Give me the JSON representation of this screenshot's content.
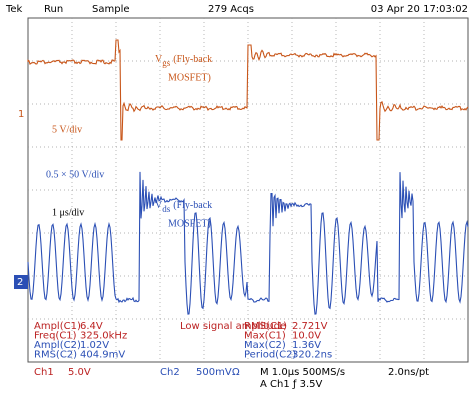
{
  "header": {
    "brand": "Tek",
    "state": "Run",
    "mode": "Sample",
    "acquisitions": "279 Acqs",
    "timestamp": "03 Apr 20 17:03:02"
  },
  "markers": {
    "ch1": "1",
    "ch2": "2"
  },
  "annotations": {
    "vgs": {
      "symbol": "V",
      "subscript": "gs",
      "line1": "(Fly-back",
      "line2": "MOSFET)"
    },
    "ch1_scale": "5 V/div",
    "ch2_scale": "0.5 × 50 V/div",
    "time_scale": "1 μs/div",
    "vds": {
      "symbol": "V",
      "subscript": "ds",
      "line1": "(Fly-back",
      "line2": "MOSFET)"
    }
  },
  "measurements": {
    "left": [
      {
        "label": "Ampl(C1)",
        "value": "6.4V"
      },
      {
        "label": "Freq(C1)",
        "value": "325.0kHz"
      },
      {
        "label": "Ampl(C2)",
        "value": "1.02V"
      },
      {
        "label": "RMS(C2)",
        "value": "404.9mV"
      }
    ],
    "note": "Low signal amplitude",
    "right": [
      {
        "label": "RMS(C1)",
        "value": "2.721V"
      },
      {
        "label": "Max(C1)",
        "value": "10.0V"
      },
      {
        "label": "Max(C2)",
        "value": "1.36V"
      },
      {
        "label": "Period(C2)",
        "value": "320.2ns"
      }
    ]
  },
  "footer": {
    "ch1": "Ch1",
    "ch1_scale": "5.0V",
    "ch2": "Ch2",
    "ch2_scale": "500mV",
    "coupling": "Ω",
    "timebase": "M 1.0μs 500MS/s",
    "resolution": "2.0ns/pt",
    "trigger": "A Ch1 ƒ 3.5V"
  }
}
